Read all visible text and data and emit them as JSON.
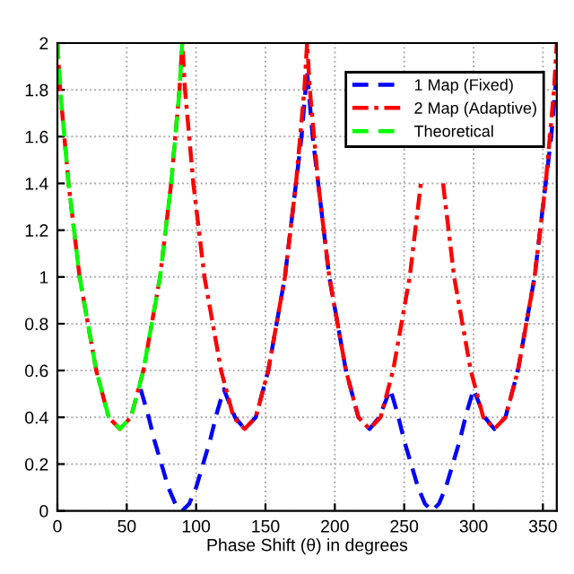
{
  "chart_data": {
    "type": "line",
    "xlabel": "Phase Shift (θ) in degrees",
    "xlim": [
      0,
      360
    ],
    "xticks": [
      0,
      50,
      100,
      150,
      200,
      250,
      300,
      350
    ],
    "ylim": [
      0,
      2
    ],
    "yticks": [
      0,
      0.2,
      0.4,
      0.6,
      0.8,
      1,
      1.2,
      1.4,
      1.6,
      1.8,
      2
    ],
    "grid": true,
    "legend": "top right",
    "marker": "none",
    "series": [
      {
        "name": "1 Map (Fixed)",
        "color": "#0000ff",
        "line_style": "dashed",
        "x": [
          60,
          65,
          70,
          75,
          80,
          85,
          90,
          95,
          100,
          105,
          110,
          115,
          120,
          128,
          135,
          143,
          152,
          158,
          164,
          168,
          172,
          176,
          180,
          184,
          188,
          192,
          196,
          202,
          208,
          217,
          225,
          232,
          240,
          245,
          250,
          255,
          260,
          265,
          270,
          275,
          280,
          285,
          290,
          295,
          300,
          308,
          315,
          323,
          332,
          338,
          344,
          348,
          352,
          356,
          360
        ],
        "values": [
          0.52,
          0.42,
          0.3,
          0.2,
          0.1,
          0.03,
          0,
          0.03,
          0.1,
          0.2,
          0.3,
          0.42,
          0.52,
          0.4,
          0.35,
          0.4,
          0.6,
          0.8,
          1.0,
          1.2,
          1.4,
          1.6,
          1.88,
          1.6,
          1.4,
          1.2,
          1.0,
          0.8,
          0.6,
          0.4,
          0.35,
          0.4,
          0.52,
          0.42,
          0.3,
          0.2,
          0.1,
          0.03,
          0,
          0.03,
          0.1,
          0.2,
          0.3,
          0.42,
          0.52,
          0.4,
          0.35,
          0.4,
          0.6,
          0.8,
          1.0,
          1.2,
          1.4,
          1.6,
          1.88
        ]
      },
      {
        "name": "2 Map (Adaptive)",
        "color": "#ff0000",
        "line_style": "dashdot",
        "x": [
          0,
          2,
          5,
          8,
          12,
          16,
          22,
          28,
          37,
          45,
          53,
          62,
          68,
          74,
          78,
          82,
          85,
          88,
          90,
          92,
          95,
          98,
          102,
          106,
          112,
          118,
          127,
          135,
          143,
          152,
          158,
          164,
          168,
          172,
          175,
          178,
          180,
          182,
          185,
          188,
          192,
          196,
          202,
          208,
          217,
          225,
          233,
          242,
          248,
          254,
          258,
          262,
          265,
          268,
          270,
          272,
          275,
          278,
          282,
          286,
          292,
          298,
          307,
          315,
          323,
          332,
          338,
          344,
          348,
          352,
          355,
          358,
          360
        ],
        "values": [
          2,
          1.8,
          1.6,
          1.4,
          1.2,
          1.0,
          0.8,
          0.6,
          0.4,
          0.35,
          0.4,
          0.6,
          0.8,
          1.0,
          1.2,
          1.4,
          1.6,
          1.8,
          2,
          1.8,
          1.6,
          1.4,
          1.2,
          1.0,
          0.8,
          0.6,
          0.4,
          0.35,
          0.4,
          0.6,
          0.8,
          1.0,
          1.2,
          1.4,
          1.6,
          1.8,
          2,
          1.8,
          1.6,
          1.4,
          1.2,
          1.0,
          0.8,
          0.6,
          0.4,
          0.35,
          0.4,
          0.6,
          0.8,
          1.0,
          1.2,
          1.4,
          null,
          null,
          null,
          null,
          null,
          1.4,
          1.2,
          1.0,
          0.8,
          0.6,
          0.4,
          0.35,
          0.4,
          0.6,
          0.8,
          1.0,
          1.2,
          1.4,
          1.6,
          1.8,
          2
        ]
      },
      {
        "name": "Theoretical",
        "color": "#00ff00",
        "line_style": "dashed",
        "x": [
          0,
          2,
          5,
          8,
          12,
          16,
          22,
          28,
          37,
          45,
          53,
          62,
          68,
          74,
          78,
          82,
          85,
          88,
          90
        ],
        "values": [
          2,
          1.8,
          1.6,
          1.4,
          1.2,
          1.0,
          0.8,
          0.6,
          0.4,
          0.35,
          0.4,
          0.6,
          0.8,
          1.0,
          1.2,
          1.4,
          1.6,
          1.8,
          2
        ]
      }
    ]
  }
}
